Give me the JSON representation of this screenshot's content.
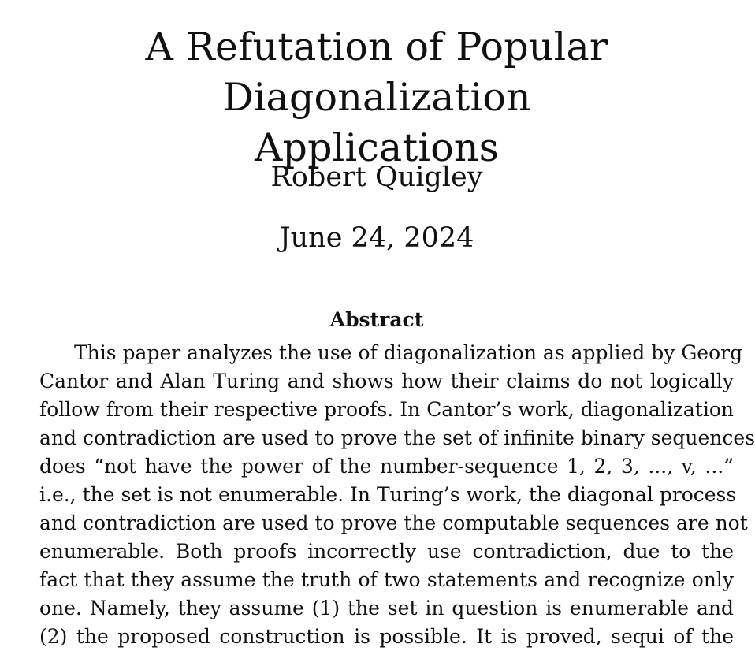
{
  "paper": {
    "title_line1": "A Refutation of Popular Diagonalization",
    "title_line2": "Applications",
    "author": "Robert Quigley",
    "date": "June 24, 2024"
  },
  "abstract": {
    "heading": "Abstract",
    "lines": [
      "This paper analyzes the use of diagonalization as applied by Georg",
      "Cantor and Alan Turing and shows how their claims do not logically",
      "follow from their respective proofs. In Cantor’s work, diagonalization",
      "and contradiction are used to prove the set of infinite binary sequences",
      "does “not have the power of the number-sequence 1, 2, 3, ..., v, ...”",
      "i.e., the set is not enumerable. In Turing’s work, the diagonal process",
      "and contradiction are used to prove the computable sequences are not",
      "enumerable. Both proofs incorrectly use contradiction, due to the",
      "fact that they assume the truth of two statements and recognize only",
      "one. Namely, they assume (1) the set in question is enumerable and",
      "(2) the proposed construction is possible. It is proved, sequi of the"
    ]
  }
}
